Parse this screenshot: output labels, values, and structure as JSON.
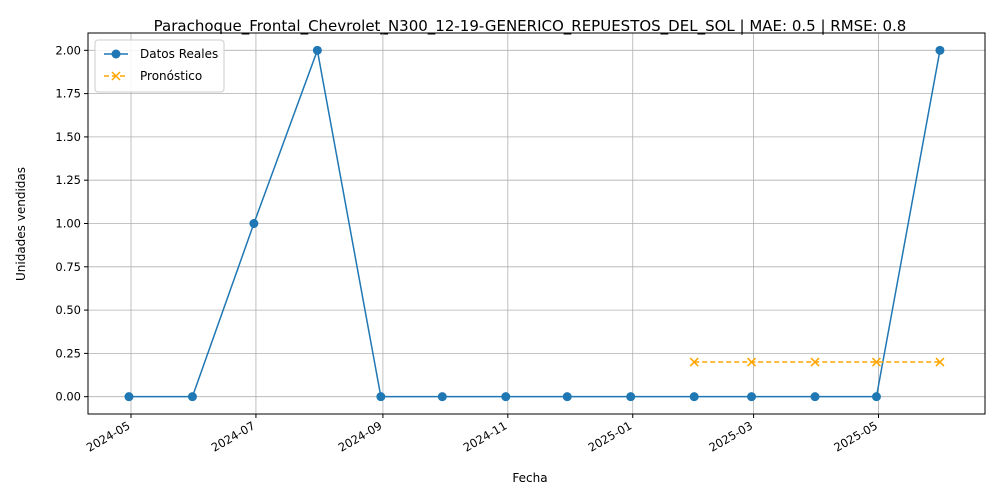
{
  "chart_data": {
    "type": "line",
    "title": "Parachoque_Frontal_Chevrolet_N300_12-19-GENERICO_REPUESTOS_DEL_SOL | MAE: 0.5 | RMSE: 0.8",
    "xlabel": "Fecha",
    "ylabel": "Unidades vendidas",
    "grid": true,
    "legend_position": "top-left",
    "xlim": [
      "2024-04-10",
      "2025-06-22"
    ],
    "ylim": [
      -0.1,
      2.1
    ],
    "x_ticks": [
      "2024-05",
      "2024-07",
      "2024-09",
      "2024-11",
      "2025-01",
      "2025-03",
      "2025-05"
    ],
    "y_ticks": [
      "0.00",
      "0.25",
      "0.50",
      "0.75",
      "1.00",
      "1.25",
      "1.50",
      "1.75",
      "2.00"
    ],
    "series": [
      {
        "name": "Datos Reales",
        "color": "#1f77b4",
        "marker": "circle",
        "style": "solid",
        "x": [
          "2024-04-30",
          "2024-05-31",
          "2024-06-30",
          "2024-07-31",
          "2024-08-31",
          "2024-09-30",
          "2024-10-31",
          "2024-11-30",
          "2024-12-31",
          "2025-01-31",
          "2025-02-28",
          "2025-03-31",
          "2025-04-30",
          "2025-05-31"
        ],
        "values": [
          0,
          0,
          1,
          2,
          0,
          0,
          0,
          0,
          0,
          0,
          0,
          0,
          0,
          2
        ]
      },
      {
        "name": "Pronóstico",
        "color": "#ffa500",
        "marker": "x",
        "style": "dashed",
        "x": [
          "2025-01-31",
          "2025-02-28",
          "2025-03-31",
          "2025-04-30",
          "2025-05-31"
        ],
        "values": [
          0.2,
          0.2,
          0.2,
          0.2,
          0.2
        ]
      }
    ]
  }
}
